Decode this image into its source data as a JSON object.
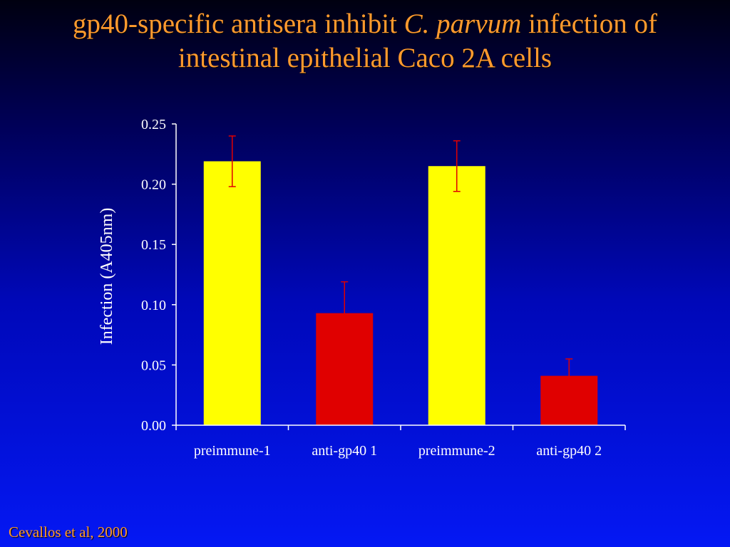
{
  "slide": {
    "title_line1_part1": "gp40-specific antisera inhibit ",
    "title_line1_italic": "C. parvum",
    "title_line1_part2": " infection of",
    "title_line2": "intestinal epithelial Caco 2A cells",
    "citation": "Cevallos et al, 2000"
  },
  "colors": {
    "title": "#ff9a2e",
    "preimmune_bar": "#ffff00",
    "antigp40_bar": "#e00000",
    "error_bar": "#e00000",
    "axis": "#ffffff"
  },
  "chart_data": {
    "type": "bar",
    "title": "",
    "xlabel": "",
    "ylabel": "Infection (A405nm)",
    "ylim": [
      0,
      0.25
    ],
    "yticks": [
      "0.00",
      "0.05",
      "0.10",
      "0.15",
      "0.20",
      "0.25"
    ],
    "categories": [
      "preimmune-1",
      "anti-gp40 1",
      "preimmune-2",
      "anti-gp40 2"
    ],
    "values": [
      0.219,
      0.093,
      0.215,
      0.041
    ],
    "error_bars": [
      0.021,
      0.026,
      0.021,
      0.014
    ],
    "bar_colors": [
      "#ffff00",
      "#e00000",
      "#ffff00",
      "#e00000"
    ],
    "grid": false,
    "legend": "none"
  }
}
